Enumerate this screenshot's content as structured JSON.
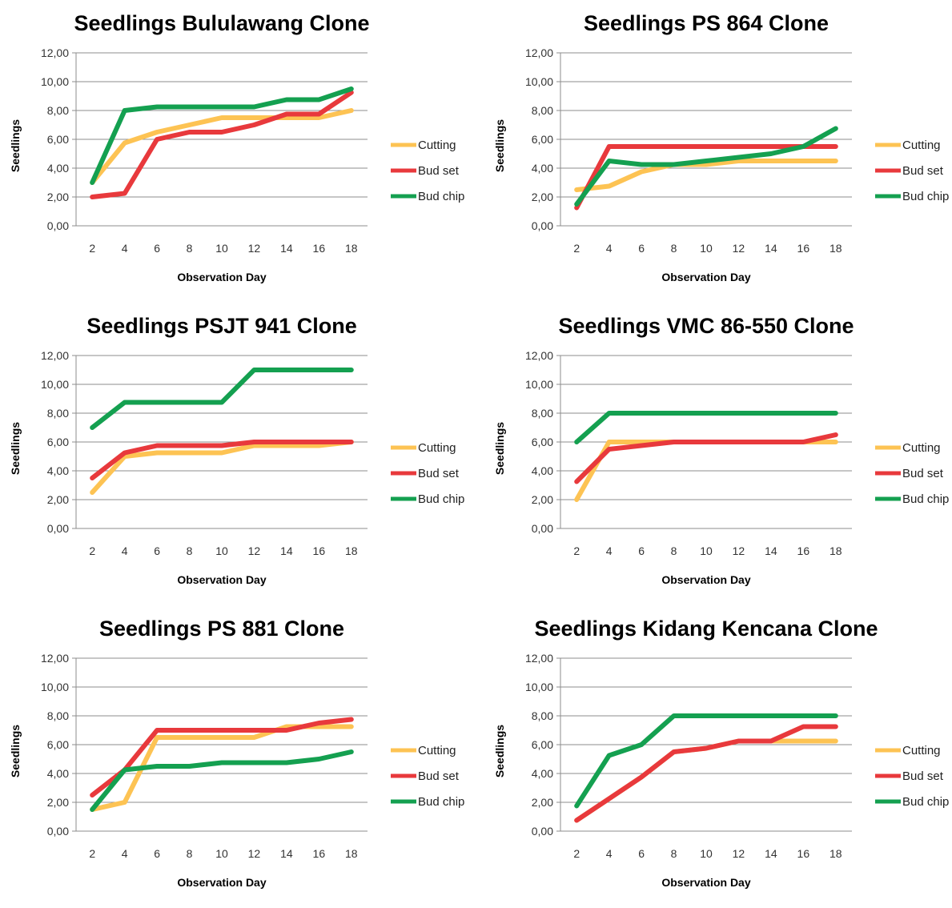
{
  "chart_data": [
    {
      "type": "line",
      "title": "Seedlings Bululawang Clone",
      "xlabel": "Observation Day",
      "ylabel": "Seedlings",
      "x": [
        2,
        4,
        6,
        8,
        10,
        12,
        14,
        16,
        18
      ],
      "x_tick_labels": [
        "2",
        "4",
        "6",
        "8",
        "10",
        "12",
        "14",
        "16",
        "18"
      ],
      "ylim": [
        0,
        12
      ],
      "y_tick_labels": [
        "0,00",
        "2,00",
        "4,00",
        "6,00",
        "8,00",
        "10,00",
        "12,00"
      ],
      "grid": true,
      "legend_position": "right",
      "series": [
        {
          "name": "Cutting",
          "color": "#FDC353",
          "values": [
            3.0,
            5.75,
            6.5,
            7.0,
            7.5,
            7.5,
            7.5,
            7.5,
            8.0
          ]
        },
        {
          "name": "Bud set",
          "color": "#E8393C",
          "values": [
            2.0,
            2.25,
            6.0,
            6.5,
            6.5,
            7.0,
            7.75,
            7.75,
            9.25
          ]
        },
        {
          "name": "Bud chip",
          "color": "#14A050",
          "values": [
            3.0,
            8.0,
            8.25,
            8.25,
            8.25,
            8.25,
            8.75,
            8.75,
            9.5
          ]
        }
      ]
    },
    {
      "type": "line",
      "title": "Seedlings PS 864 Clone",
      "xlabel": "Observation Day",
      "ylabel": "Seedlings",
      "x": [
        2,
        4,
        6,
        8,
        10,
        12,
        14,
        16,
        18
      ],
      "x_tick_labels": [
        "2",
        "4",
        "6",
        "8",
        "10",
        "12",
        "14",
        "16",
        "18"
      ],
      "ylim": [
        0,
        12
      ],
      "y_tick_labels": [
        "0,00",
        "2,00",
        "4,00",
        "6,00",
        "8,00",
        "10,00",
        "12,00"
      ],
      "grid": true,
      "legend_position": "right",
      "series": [
        {
          "name": "Cutting",
          "color": "#FDC353",
          "values": [
            2.5,
            2.75,
            3.75,
            4.25,
            4.25,
            4.5,
            4.5,
            4.5,
            4.5
          ]
        },
        {
          "name": "Bud set",
          "color": "#E8393C",
          "values": [
            1.25,
            5.5,
            5.5,
            5.5,
            5.5,
            5.5,
            5.5,
            5.5,
            5.5
          ]
        },
        {
          "name": "Bud chip",
          "color": "#14A050",
          "values": [
            1.5,
            4.5,
            4.25,
            4.25,
            4.5,
            4.75,
            5.0,
            5.5,
            6.75
          ]
        }
      ]
    },
    {
      "type": "line",
      "title": "Seedlings PSJT 941 Clone",
      "xlabel": "Observation Day",
      "ylabel": "Seedlings",
      "x": [
        2,
        4,
        6,
        8,
        10,
        12,
        14,
        16,
        18
      ],
      "x_tick_labels": [
        "2",
        "4",
        "6",
        "8",
        "10",
        "12",
        "14",
        "16",
        "18"
      ],
      "ylim": [
        0,
        12
      ],
      "y_tick_labels": [
        "0,00",
        "2,00",
        "4,00",
        "6,00",
        "8,00",
        "10,00",
        "12,00"
      ],
      "grid": true,
      "legend_position": "right",
      "series": [
        {
          "name": "Cutting",
          "color": "#FDC353",
          "values": [
            2.5,
            5.0,
            5.25,
            5.25,
            5.25,
            5.75,
            5.75,
            5.75,
            6.0
          ]
        },
        {
          "name": "Bud set",
          "color": "#E8393C",
          "values": [
            3.5,
            5.25,
            5.75,
            5.75,
            5.75,
            6.0,
            6.0,
            6.0,
            6.0
          ]
        },
        {
          "name": "Bud chip",
          "color": "#14A050",
          "values": [
            7.0,
            8.75,
            8.75,
            8.75,
            8.75,
            11.0,
            11.0,
            11.0,
            11.0
          ]
        }
      ]
    },
    {
      "type": "line",
      "title": "Seedlings VMC 86-550 Clone",
      "xlabel": "Observation Day",
      "ylabel": "Seedlings",
      "x": [
        2,
        4,
        6,
        8,
        10,
        12,
        14,
        16,
        18
      ],
      "x_tick_labels": [
        "2",
        "4",
        "6",
        "8",
        "10",
        "12",
        "14",
        "16",
        "18"
      ],
      "ylim": [
        0,
        12
      ],
      "y_tick_labels": [
        "0,00",
        "2,00",
        "4,00",
        "6,00",
        "8,00",
        "10,00",
        "12,00"
      ],
      "grid": true,
      "legend_position": "right",
      "series": [
        {
          "name": "Cutting",
          "color": "#FDC353",
          "values": [
            2.0,
            6.0,
            6.0,
            6.0,
            6.0,
            6.0,
            6.0,
            6.0,
            6.0
          ]
        },
        {
          "name": "Bud set",
          "color": "#E8393C",
          "values": [
            3.25,
            5.5,
            5.75,
            6.0,
            6.0,
            6.0,
            6.0,
            6.0,
            6.5
          ]
        },
        {
          "name": "Bud chip",
          "color": "#14A050",
          "values": [
            6.0,
            8.0,
            8.0,
            8.0,
            8.0,
            8.0,
            8.0,
            8.0,
            8.0
          ]
        }
      ]
    },
    {
      "type": "line",
      "title": "Seedlings PS 881 Clone",
      "xlabel": "Observation Day",
      "ylabel": "Seedlings",
      "x": [
        2,
        4,
        6,
        8,
        10,
        12,
        14,
        16,
        18
      ],
      "x_tick_labels": [
        "2",
        "4",
        "6",
        "8",
        "10",
        "12",
        "14",
        "16",
        "18"
      ],
      "ylim": [
        0,
        12
      ],
      "y_tick_labels": [
        "0,00",
        "2,00",
        "4,00",
        "6,00",
        "8,00",
        "10,00",
        "12,00"
      ],
      "grid": true,
      "legend_position": "right",
      "series": [
        {
          "name": "Cutting",
          "color": "#FDC353",
          "values": [
            1.5,
            2.0,
            6.5,
            6.5,
            6.5,
            6.5,
            7.25,
            7.25,
            7.25
          ]
        },
        {
          "name": "Bud set",
          "color": "#E8393C",
          "values": [
            2.5,
            4.25,
            7.0,
            7.0,
            7.0,
            7.0,
            7.0,
            7.5,
            7.75
          ]
        },
        {
          "name": "Bud chip",
          "color": "#14A050",
          "values": [
            1.5,
            4.25,
            4.5,
            4.5,
            4.75,
            4.75,
            4.75,
            5.0,
            5.5
          ]
        }
      ]
    },
    {
      "type": "line",
      "title": "Seedlings Kidang Kencana Clone",
      "xlabel": "Observation Day",
      "ylabel": "Seedlings",
      "x": [
        2,
        4,
        6,
        8,
        10,
        12,
        14,
        16,
        18
      ],
      "x_tick_labels": [
        "2",
        "4",
        "6",
        "8",
        "10",
        "12",
        "14",
        "16",
        "18"
      ],
      "ylim": [
        0,
        12
      ],
      "y_tick_labels": [
        "0,00",
        "2,00",
        "4,00",
        "6,00",
        "8,00",
        "10,00",
        "12,00"
      ],
      "grid": true,
      "legend_position": "right",
      "series": [
        {
          "name": "Cutting",
          "color": "#FDC353",
          "values": [
            0.75,
            2.25,
            3.75,
            5.5,
            5.75,
            6.25,
            6.25,
            6.25,
            6.25
          ]
        },
        {
          "name": "Bud set",
          "color": "#E8393C",
          "values": [
            0.75,
            2.25,
            3.75,
            5.5,
            5.75,
            6.25,
            6.25,
            7.25,
            7.25
          ]
        },
        {
          "name": "Bud chip",
          "color": "#14A050",
          "values": [
            1.75,
            5.25,
            6.0,
            8.0,
            8.0,
            8.0,
            8.0,
            8.0,
            8.0
          ]
        }
      ]
    }
  ]
}
